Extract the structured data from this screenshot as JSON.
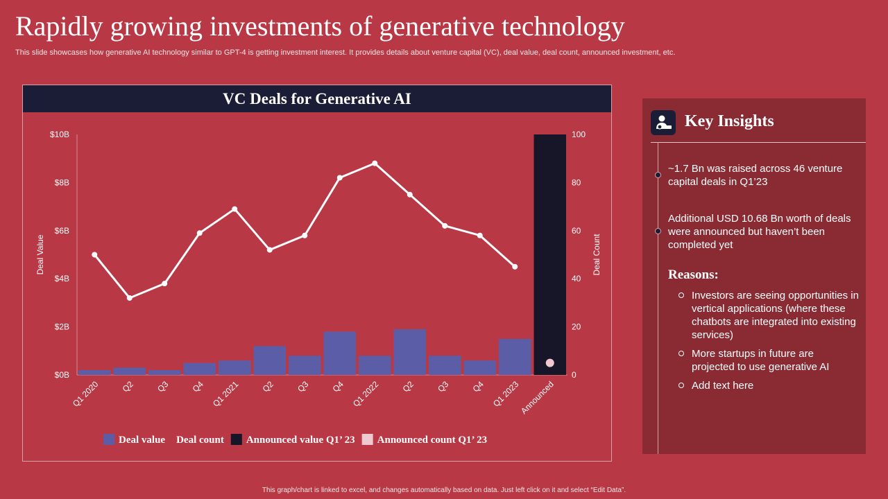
{
  "page": {
    "title": "Rapidly growing investments of generative technology",
    "subtitle": "This slide showcases how generative AI technology similar to GPT-4 is getting investment interest. It provides details about venture capital (VC),  deal value, deal count, announced investment, etc.",
    "footer": "This graph/chart is linked to excel, and changes automatically based on data. Just left click on it and select “Edit Data”."
  },
  "chart_data": {
    "type": "bar",
    "title": "VC Deals for Generative AI",
    "categories": [
      "Q1 2020",
      "Q2",
      "Q3",
      "Q4",
      "Q1 2021",
      "Q2",
      "Q3",
      "Q4",
      "Q1 2022",
      "Q2",
      "Q3",
      "Q4",
      "Q1 2023",
      "Announced"
    ],
    "y_left": {
      "label": "Deal Value",
      "ticks": [
        "$0B",
        "$2B",
        "$4B",
        "$6B",
        "$8B",
        "$10B"
      ],
      "range": [
        0,
        10
      ]
    },
    "y_right": {
      "label": "Deal Count",
      "ticks": [
        "0",
        "20",
        "40",
        "60",
        "80",
        "100"
      ],
      "range": [
        0,
        100
      ]
    },
    "series": [
      {
        "name": "Deal value",
        "type": "bar",
        "axis": "left",
        "color": "#5b5ea6",
        "values": [
          0.2,
          0.3,
          0.2,
          0.5,
          0.6,
          1.2,
          0.8,
          1.8,
          0.8,
          1.9,
          0.8,
          0.6,
          1.5,
          null
        ]
      },
      {
        "name": "Deal count",
        "type": "line",
        "axis": "right",
        "color": "#ffffff",
        "values": [
          50,
          32,
          38,
          59,
          69,
          52,
          58,
          82,
          88,
          75,
          62,
          58,
          45,
          null
        ]
      },
      {
        "name": "Announced value Q1’ 23",
        "type": "bar",
        "axis": "left",
        "color": "#161628",
        "values": [
          null,
          null,
          null,
          null,
          null,
          null,
          null,
          null,
          null,
          null,
          null,
          null,
          null,
          10
        ]
      },
      {
        "name": "Announced count Q1’ 23",
        "type": "point",
        "axis": "right",
        "color": "#f0c8cf",
        "values": [
          null,
          null,
          null,
          null,
          null,
          null,
          null,
          null,
          null,
          null,
          null,
          null,
          null,
          5
        ]
      }
    ],
    "legend_position": "bottom",
    "grid": false
  },
  "insights": {
    "title": "Key Insights",
    "icon": "investor-icon",
    "points": [
      "~1.7 Bn was raised across 46 venture capital deals in Q1’23",
      "Additional USD 10.68 Bn worth of deals were announced  but haven’t been completed yet"
    ],
    "reasons_title": "Reasons:",
    "reasons": [
      "Investors  are seeing opportunities in vertical applications (where these chatbots are integrated into existing services)",
      "More startups in future are projected to use generative AI",
      "Add text here"
    ]
  },
  "colors": {
    "background": "#b93845",
    "panel": "#8a2b34",
    "navy": "#1b1c35",
    "bar": "#5b5ea6"
  }
}
